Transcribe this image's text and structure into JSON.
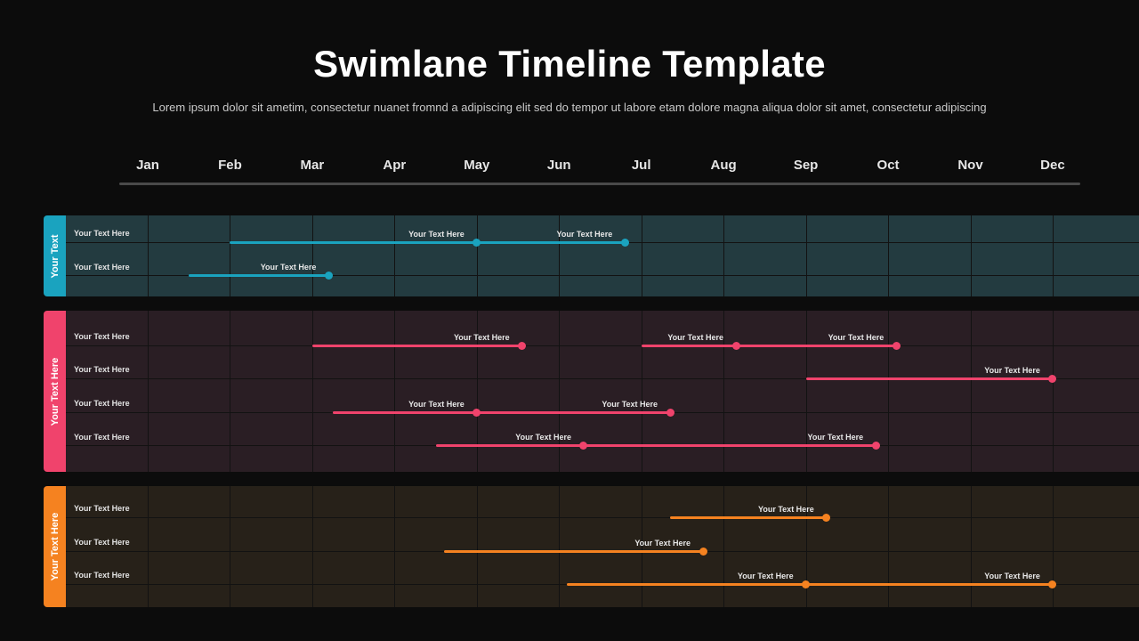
{
  "title": "Swimlane Timeline Template",
  "subtitle": "Lorem ipsum dolor sit ametim, consectetur nuanet fromnd a adipiscing elit sed do tempor ut labore etam dolore magna aliqua dolor sit amet, consectetur adipiscing",
  "months": [
    "Jan",
    "Feb",
    "Mar",
    "Apr",
    "May",
    "Jun",
    "Jul",
    "Aug",
    "Sep",
    "Oct",
    "Nov",
    "Dec"
  ],
  "lanes": [
    {
      "label": "Your Text",
      "color": "#1aa3bf",
      "background": "#233b40",
      "rows": [
        {
          "label": "Your Text Here",
          "tasks": [
            {
              "start": 2.0,
              "end": 6.8,
              "points": [
                {
                  "at": 5.0,
                  "label": "Your Text Here"
                },
                {
                  "at": 6.8,
                  "label": "Your Text Here"
                }
              ]
            }
          ]
        },
        {
          "label": "Your Text Here",
          "tasks": [
            {
              "start": 1.5,
              "end": 3.2,
              "points": [
                {
                  "at": 3.2,
                  "label": "Your Text Here"
                }
              ]
            }
          ]
        }
      ]
    },
    {
      "label": "Your Text Here",
      "color": "#f0436c",
      "background": "#2a1e24",
      "rows": [
        {
          "label": "Your Text Here",
          "tasks": [
            {
              "start": 3.0,
              "end": 5.55,
              "points": [
                {
                  "at": 5.55,
                  "label": "Your Text Here"
                }
              ]
            },
            {
              "start": 7.0,
              "end": 10.1,
              "points": [
                {
                  "at": 8.15,
                  "label": "Your Text Here"
                },
                {
                  "at": 10.1,
                  "label": "Your Text Here"
                }
              ]
            }
          ]
        },
        {
          "label": "Your Text Here",
          "tasks": [
            {
              "start": 9.0,
              "end": 12.0,
              "points": [
                {
                  "at": 12.0,
                  "label": "Your Text Here"
                }
              ]
            }
          ]
        },
        {
          "label": "Your Text Here",
          "tasks": [
            {
              "start": 3.25,
              "end": 7.35,
              "points": [
                {
                  "at": 5.0,
                  "label": "Your Text Here"
                },
                {
                  "at": 7.35,
                  "label": "Your Text Here"
                }
              ]
            }
          ]
        },
        {
          "label": "Your Text Here",
          "tasks": [
            {
              "start": 4.5,
              "end": 9.85,
              "points": [
                {
                  "at": 6.3,
                  "label": "Your Text Here"
                },
                {
                  "at": 9.85,
                  "label": "Your Text Here"
                }
              ]
            }
          ]
        }
      ]
    },
    {
      "label": "Your Text Here",
      "color": "#f58220",
      "background": "#272119",
      "rows": [
        {
          "label": "Your Text Here",
          "tasks": [
            {
              "start": 7.35,
              "end": 9.25,
              "points": [
                {
                  "at": 9.25,
                  "label": "Your Text Here"
                }
              ]
            }
          ]
        },
        {
          "label": "Your Text Here",
          "tasks": [
            {
              "start": 4.6,
              "end": 7.75,
              "points": [
                {
                  "at": 7.75,
                  "label": "Your Text Here"
                }
              ]
            }
          ]
        },
        {
          "label": "Your Text Here",
          "tasks": [
            {
              "start": 6.1,
              "end": 12.0,
              "points": [
                {
                  "at": 9.0,
                  "label": "Your Text Here"
                },
                {
                  "at": 12.0,
                  "label": "Your Text Here"
                }
              ]
            }
          ]
        }
      ]
    }
  ]
}
